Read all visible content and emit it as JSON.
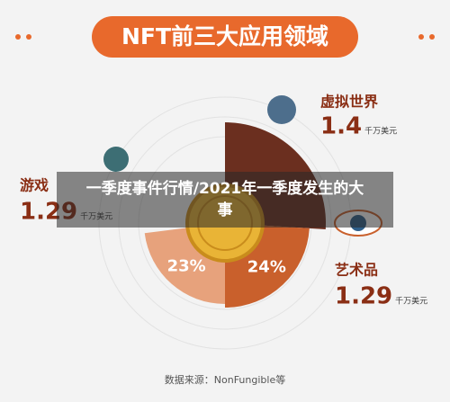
{
  "chart_data": {
    "type": "pie",
    "title": "NFT前三大应用领域",
    "categories": [
      "虚拟世界",
      "艺术品",
      "游戏"
    ],
    "values": [
      26,
      24,
      23
    ],
    "value_labels": [
      null,
      "24%",
      "23%"
    ],
    "colors": [
      "#6b2f1f",
      "#c9602c",
      "#e7a27c"
    ],
    "amounts": [
      1.4,
      1.29,
      1.29
    ],
    "amount_unit": "千万美元",
    "source": "数据来源：NonFungible等",
    "overlay_caption": "一季度事件行情/2021年一季度发生的大事"
  }
}
